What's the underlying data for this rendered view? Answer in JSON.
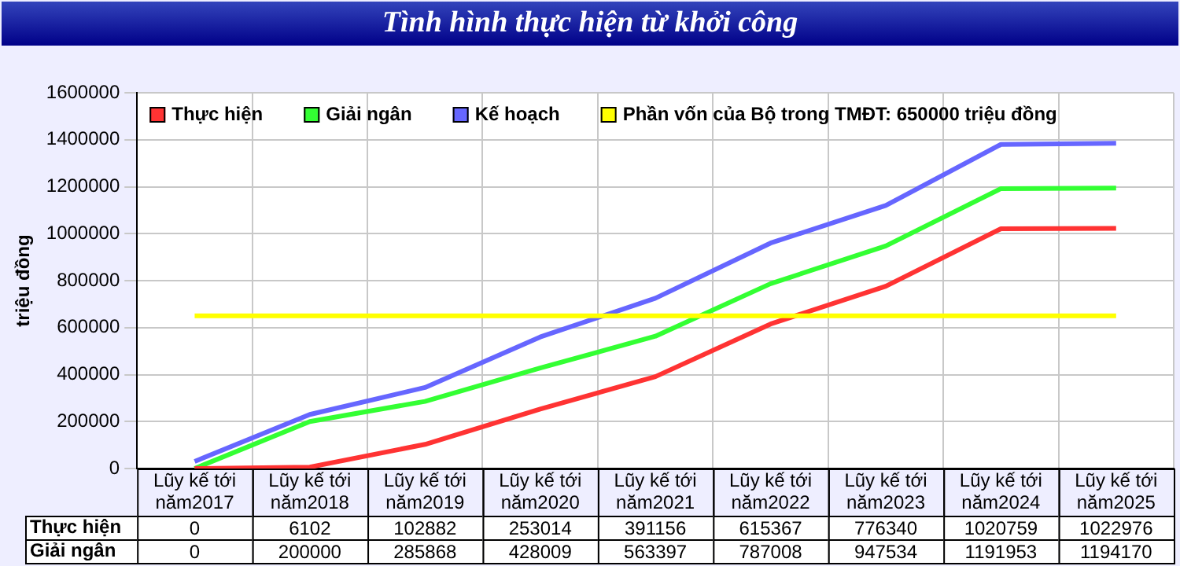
{
  "chart_data": {
    "type": "line",
    "title": "Tình hình thực hiện từ khởi công",
    "ylabel": "triệu đồng",
    "categories": [
      "Lũy kế tới năm2017",
      "Lũy kế tới năm2018",
      "Lũy kế tới năm2019",
      "Lũy kế tới năm2020",
      "Lũy kế tới năm2021",
      "Lũy kế tới năm2022",
      "Lũy kế tới năm2023",
      "Lũy kế tới năm2024",
      "Lũy kế tới năm2025"
    ],
    "series": [
      {
        "name": "Thực hiện",
        "color": "#ff3333",
        "values": [
          0,
          6102,
          102882,
          253014,
          391156,
          615367,
          776340,
          1020759,
          1022976
        ],
        "value_labels": [
          "0",
          "6102",
          "102882",
          "253014",
          "391156",
          "615367",
          "776340",
          "1020759",
          "1022976"
        ]
      },
      {
        "name": "Giải ngân",
        "color": "#33ff33",
        "values": [
          0,
          200000,
          285868,
          428009,
          563397,
          787008,
          947534,
          1191953,
          1194170
        ],
        "value_labels": [
          "0",
          "200000",
          "285868",
          "428009",
          "563397",
          "787008",
          "947534",
          "1191953",
          "1194170"
        ]
      },
      {
        "name": "Kế hoạch",
        "color": "#6666ff",
        "values": [
          30000,
          230000,
          345000,
          560000,
          725000,
          960000,
          1120000,
          1380000,
          1385000
        ]
      }
    ],
    "ref_lines": [
      {
        "axis": "y",
        "value": 650000,
        "label": "Phần vốn của Bộ trong TMĐT: 650000 triệu đồng",
        "color": "#ffff00"
      }
    ],
    "ylim": [
      0,
      1600000
    ],
    "yticks": [
      0,
      200000,
      400000,
      600000,
      800000,
      1000000,
      1200000,
      1400000,
      1600000
    ],
    "grid": true,
    "legend": "top left",
    "line_style": "solid",
    "marker": "none"
  }
}
